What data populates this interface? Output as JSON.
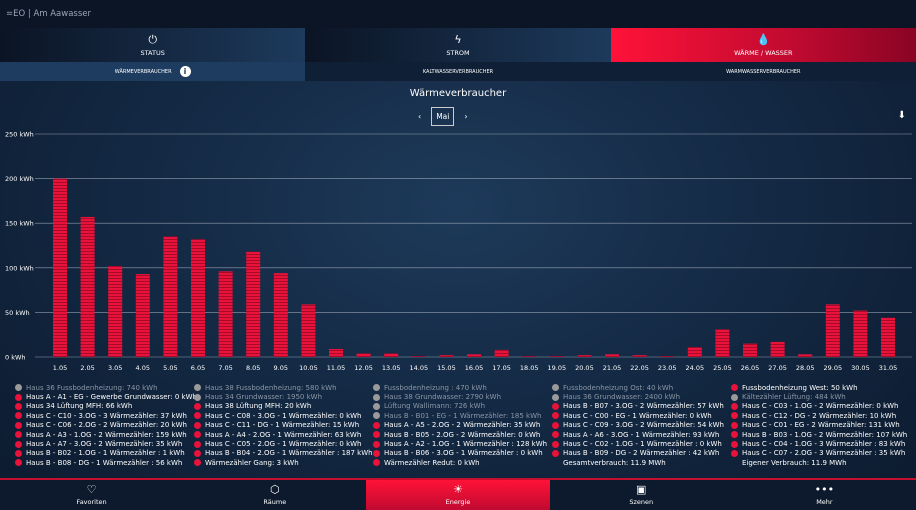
{
  "header": {
    "title": "=EO | Am Aawasser"
  },
  "tabs": [
    {
      "label": "STATUS",
      "icon": "power-icon",
      "glyph": "⏻"
    },
    {
      "label": "STROM",
      "icon": "bolt-icon",
      "glyph": "ϟ"
    },
    {
      "label": "WÄRME / WASSER",
      "icon": "drop-icon",
      "glyph": "💧",
      "active": true
    }
  ],
  "subtabs": [
    {
      "label": "WÄRMEVERBRAUCHER",
      "active": true
    },
    {
      "label": "KALTWASSERVERBRAUCHER"
    },
    {
      "label": "WARMWASSERVERBRAUCHER"
    }
  ],
  "info_glyph": "i",
  "page_title": "Wärmeverbraucher",
  "month": {
    "prev": "‹",
    "value": "Mai",
    "next": "›"
  },
  "download_glyph": "⬇",
  "chart_data": {
    "type": "bar",
    "title": "",
    "xlabel": "",
    "ylabel": "",
    "ylim": [
      0,
      250
    ],
    "grid": true,
    "yticks": [
      0,
      50,
      100,
      150,
      200,
      250
    ],
    "ytick_labels": [
      "0 kWh",
      "50 kWh",
      "100 kWh",
      "150 kWh",
      "200 kWh",
      "250 kWh"
    ],
    "categories": [
      "1.05",
      "2.05",
      "3.05",
      "4.05",
      "5.05",
      "6.05",
      "7.05",
      "8.05",
      "9.05",
      "10.05",
      "11.05",
      "12.05",
      "13.05",
      "14.05",
      "15.05",
      "16.05",
      "17.05",
      "18.05",
      "19.05",
      "20.05",
      "21.05",
      "22.05",
      "23.05",
      "24.05",
      "25.05",
      "26.05",
      "27.05",
      "28.05",
      "29.05",
      "30.05",
      "31.05"
    ],
    "values": [
      200,
      157,
      102,
      93,
      135,
      132,
      96,
      118,
      94,
      59,
      9,
      4,
      4,
      1,
      2,
      3,
      8,
      1,
      1,
      2,
      3,
      2,
      1,
      11,
      31,
      15,
      17,
      3,
      59,
      52,
      44
    ],
    "bar_color": "#e8123a"
  },
  "legend": [
    [
      {
        "t": "Haus 36 Fussbodenheizung: 740 kWh",
        "s": "grey"
      },
      {
        "t": "Haus A - A1 - EG - Gewerbe Grundwasser: 0 kWh",
        "s": "red"
      },
      {
        "t": "Haus 34 Lüftung MFH: 66 kWh",
        "s": "red"
      },
      {
        "t": "Haus C - C10 - 3.OG - 3 Wärmezähler: 37 kWh",
        "s": "red"
      },
      {
        "t": "Haus C - C06 - 2.OG - 2 Wärmezähler: 20 kWh",
        "s": "red"
      },
      {
        "t": "Haus A - A3 - 1.OG - 2 Wärmezähler: 159 kWh",
        "s": "red"
      },
      {
        "t": "Haus A - A7 - 3.OG - 2 Wärmezähler: 35 kWh",
        "s": "red"
      },
      {
        "t": "Haus B - B02 - 1.OG - 1 Wärmezähler : 1 kWh",
        "s": "red"
      },
      {
        "t": "Haus B - B08 - DG - 1 Wärmezähler : 56 kWh",
        "s": "red"
      }
    ],
    [
      {
        "t": "Haus 38 Fussbodenheizung: 580 kWh",
        "s": "grey"
      },
      {
        "t": "Haus 34 Grundwasser: 1950 kWh",
        "s": "grey"
      },
      {
        "t": "Haus 38 Lüftung MFH: 20 kWh",
        "s": "red"
      },
      {
        "t": "Haus C - C08 - 3.OG - 1 Wärmezähler: 0 kWh",
        "s": "red"
      },
      {
        "t": "Haus C - C11 - DG - 1 Wärmezähler: 15 kWh",
        "s": "red"
      },
      {
        "t": "Haus A - A4 - 2.OG - 1 Wärmezähler: 63 kWh",
        "s": "red"
      },
      {
        "t": "Haus C - C05 - 2.OG - 1 Wärmezähler: 0 kWh",
        "s": "red"
      },
      {
        "t": "Haus B - B04 - 2.OG - 1 Wärmezähler : 187 kWh",
        "s": "red"
      },
      {
        "t": "Wärmezähler Gang: 3 kWh",
        "s": "red"
      }
    ],
    [
      {
        "t": "Fussbodenheizung : 470 kWh",
        "s": "grey"
      },
      {
        "t": "Haus 38 Grundwasser: 2790 kWh",
        "s": "grey"
      },
      {
        "t": "Lüftung Wallimann: 726 kWh",
        "s": "grey"
      },
      {
        "t": "Haus B - B01 - EG - 1 Wärmezähler: 185 kWh",
        "s": "grey"
      },
      {
        "t": "Haus A - A5 - 2.OG - 2 Wärmezähler: 35 kWh",
        "s": "red"
      },
      {
        "t": "Haus B - B05 - 2.OG - 2 Wärmezähler: 0 kWh",
        "s": "red"
      },
      {
        "t": "Haus A - A2 - 1.OG - 1 Wärmezähler : 128 kWh",
        "s": "red"
      },
      {
        "t": "Haus B - B06 - 3.OG - 1 Wärmezähler : 0 kWh",
        "s": "red"
      },
      {
        "t": "Wärmezähler Redut: 0 kWh",
        "s": "red"
      }
    ],
    [
      {
        "t": "Fussbodenheizung Ost: 40 kWh",
        "s": "grey"
      },
      {
        "t": "Haus 36 Grundwasser: 2400 kWh",
        "s": "grey"
      },
      {
        "t": "Haus B - B07 - 3.OG - 2 Wärmezähler: 57 kWh",
        "s": "red"
      },
      {
        "t": "Haus C - C00 - EG - 1 Wärmezähler: 0 kWh",
        "s": "red"
      },
      {
        "t": "Haus C - C09 - 3.OG - 2 Wärmezähler: 54 kWh",
        "s": "red"
      },
      {
        "t": "Haus A - A6 - 3.OG - 1 Wärmezähler: 93 kWh",
        "s": "red"
      },
      {
        "t": "Haus C - C02 - 1.OG - 1 Wärmezähler : 0 kWh",
        "s": "red"
      },
      {
        "t": "Haus B - B09 - DG - 2 Wärmezähler : 42 kWh",
        "s": "red"
      },
      {
        "t": "Gesamtverbrauch: 11.9 MWh",
        "s": "plain"
      }
    ],
    [
      {
        "t": "Fussbodenheizung West: 50 kWh",
        "s": "red"
      },
      {
        "t": "Kältezähler Lüftung: 484 kWh",
        "s": "grey"
      },
      {
        "t": "Haus C - C03 - 1.OG - 2 Wärmezähler: 0 kWh",
        "s": "red"
      },
      {
        "t": "Haus C - C12 - DG - 2 Wärmezähler: 10 kWh",
        "s": "red"
      },
      {
        "t": "Haus C - C01 - EG - 2 Wärmezähler: 131 kWh",
        "s": "red"
      },
      {
        "t": "Haus B - B03 - 1.OG - 2 Wärmezähler: 107 kWh",
        "s": "red"
      },
      {
        "t": "Haus C - C04 - 1.OG - 3 Wärmezähler : 83 kWh",
        "s": "red"
      },
      {
        "t": "Haus C - C07 - 2.OG - 3 Wärmezähler : 35 kWh",
        "s": "red"
      },
      {
        "t": "Eigener Verbrauch: 11.9 MWh",
        "s": "plain"
      }
    ]
  ],
  "nav": [
    {
      "label": "Favoriten",
      "icon": "heart-icon",
      "glyph": "♡"
    },
    {
      "label": "Räume",
      "icon": "cube-icon",
      "glyph": "⬡"
    },
    {
      "label": "Energie",
      "icon": "energy-icon",
      "glyph": "☀",
      "active": true
    },
    {
      "label": "Szenen",
      "icon": "image-icon",
      "glyph": "▣"
    },
    {
      "label": "Mehr",
      "icon": "more-icon",
      "glyph": "•••"
    }
  ]
}
